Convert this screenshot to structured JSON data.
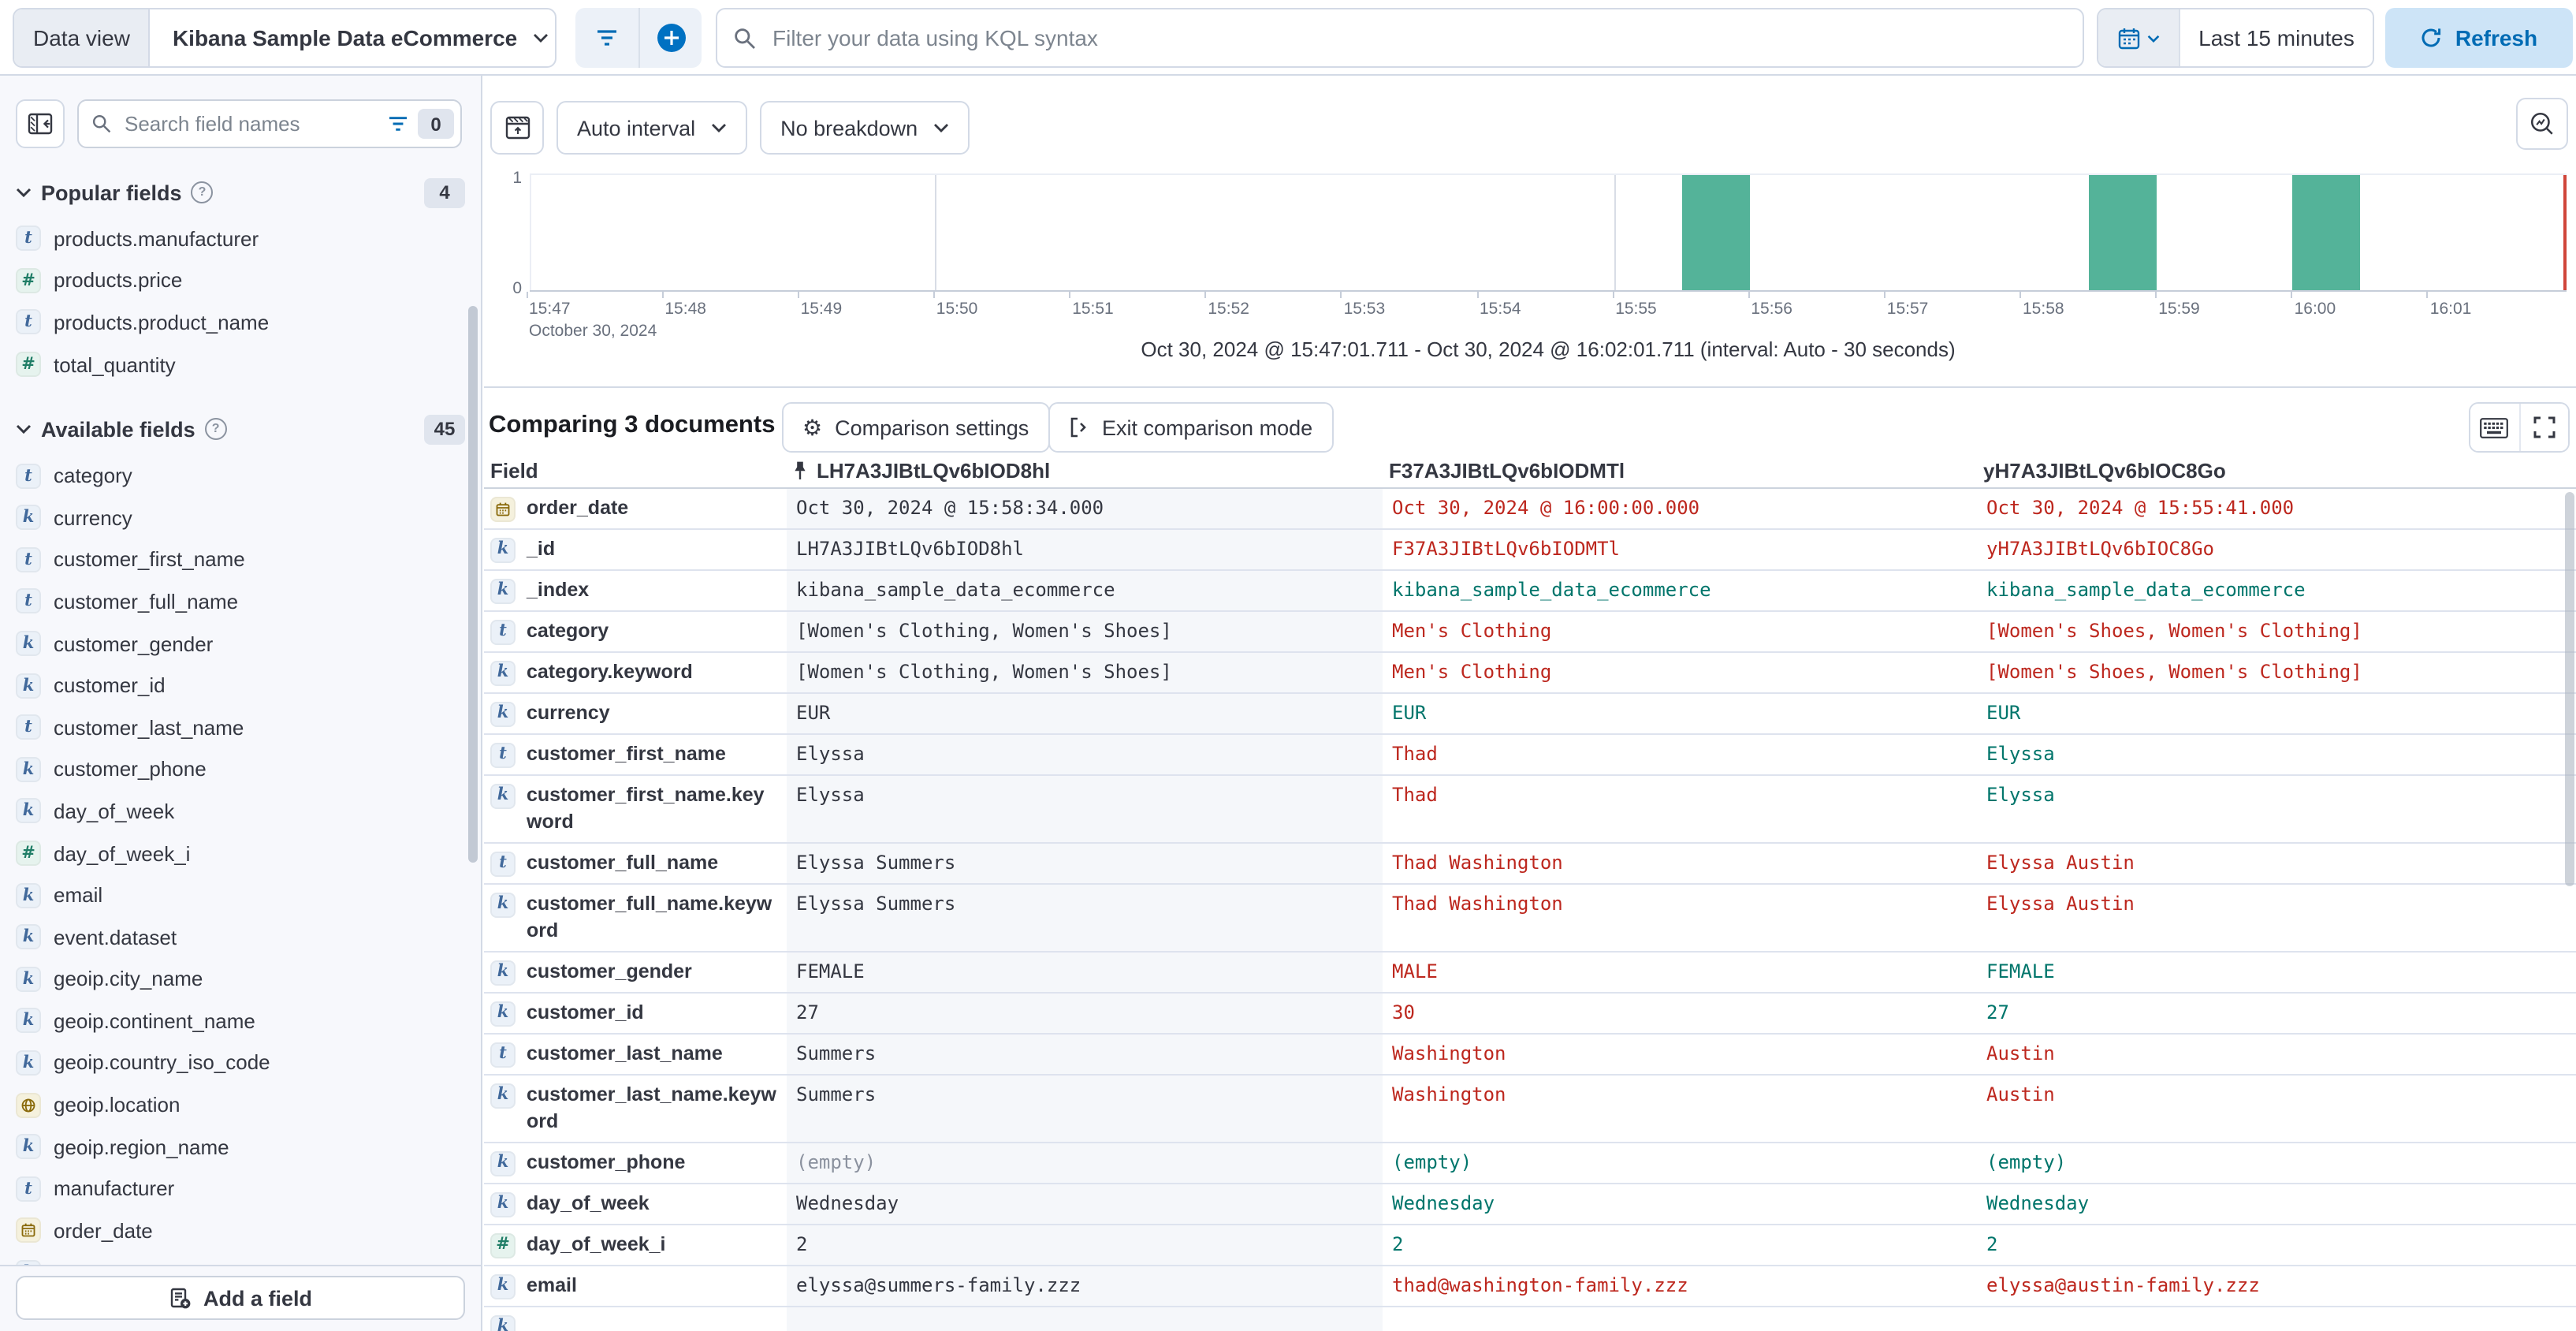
{
  "top_bar": {
    "data_view_label": "Data view",
    "data_view_value": "Kibana Sample Data eCommerce",
    "kql_placeholder": "Filter your data using KQL syntax",
    "time_range": "Last 15 minutes",
    "refresh_label": "Refresh"
  },
  "sidebar": {
    "search_placeholder": "Search field names",
    "filter_count": "0",
    "popular": {
      "label": "Popular fields",
      "count": "4",
      "items": [
        {
          "type": "t",
          "name": "products.manufacturer"
        },
        {
          "type": "#",
          "name": "products.price"
        },
        {
          "type": "t",
          "name": "products.product_name"
        },
        {
          "type": "#",
          "name": "total_quantity"
        }
      ]
    },
    "available": {
      "label": "Available fields",
      "count": "45",
      "items": [
        {
          "type": "t",
          "name": "category"
        },
        {
          "type": "k",
          "name": "currency"
        },
        {
          "type": "t",
          "name": "customer_first_name"
        },
        {
          "type": "t",
          "name": "customer_full_name"
        },
        {
          "type": "k",
          "name": "customer_gender"
        },
        {
          "type": "k",
          "name": "customer_id"
        },
        {
          "type": "t",
          "name": "customer_last_name"
        },
        {
          "type": "k",
          "name": "customer_phone"
        },
        {
          "type": "k",
          "name": "day_of_week"
        },
        {
          "type": "#",
          "name": "day_of_week_i"
        },
        {
          "type": "k",
          "name": "email"
        },
        {
          "type": "k",
          "name": "event.dataset"
        },
        {
          "type": "k",
          "name": "geoip.city_name"
        },
        {
          "type": "k",
          "name": "geoip.continent_name"
        },
        {
          "type": "k",
          "name": "geoip.country_iso_code"
        },
        {
          "type": "geo",
          "name": "geoip.location"
        },
        {
          "type": "k",
          "name": "geoip.region_name"
        },
        {
          "type": "t",
          "name": "manufacturer"
        },
        {
          "type": "date",
          "name": "order_date"
        }
      ],
      "partial_item_type": "k"
    },
    "add_field_label": "Add a field"
  },
  "chart": {
    "interval_label": "Auto interval",
    "breakdown_label": "No breakdown",
    "footer": "Oct 30, 2024 @ 15:47:01.711 - Oct 30, 2024 @ 16:02:01.711 (interval: Auto - 30 seconds)"
  },
  "chart_data": {
    "type": "bar",
    "x_range": [
      "15:47:01.711",
      "16:02:01.711"
    ],
    "x": [
      "15:55:30",
      "15:58:30",
      "16:00:00"
    ],
    "values": [
      1,
      1,
      1
    ],
    "interval_seconds": 30,
    "x_ticks": [
      "15:47",
      "15:48",
      "15:49",
      "15:50",
      "15:51",
      "15:52",
      "15:53",
      "15:54",
      "15:55",
      "15:56",
      "15:57",
      "15:58",
      "15:59",
      "16:00",
      "16:01"
    ],
    "x_gridlines": [
      "15:50",
      "15:55",
      "16:00"
    ],
    "x_date_label": "October 30, 2024",
    "y_ticks": [
      "1",
      "0"
    ],
    "ylim": [
      0,
      1
    ],
    "bar_color": "#54B399",
    "end_marker_color": "#D0453A",
    "legend": "off",
    "title": ""
  },
  "compare": {
    "title": "Comparing 3 documents",
    "settings_label": "Comparison settings",
    "exit_label": "Exit comparison mode",
    "columns": [
      "Field",
      "LH7A3JIBtLQv6bIOD8hl",
      "F37A3JIBtLQv6bIODMTl",
      "yH7A3JIBtLQv6bIOC8Go"
    ],
    "rows": [
      {
        "type": "date",
        "field": "order_date",
        "base": "Oct 30, 2024 @ 15:58:34.000",
        "a": "Oct 30, 2024 @ 16:00:00.000",
        "a_state": "diff",
        "b": "Oct 30, 2024 @ 15:55:41.000",
        "b_state": "diff"
      },
      {
        "type": "k",
        "field": "_id",
        "base": "LH7A3JIBtLQv6bIOD8hl",
        "a": "F37A3JIBtLQv6bIODMTl",
        "a_state": "diff",
        "b": "yH7A3JIBtLQv6bIOC8Go",
        "b_state": "diff"
      },
      {
        "type": "k",
        "field": "_index",
        "base": "kibana_sample_data_ecommerce",
        "a": "kibana_sample_data_ecommerce",
        "a_state": "same",
        "b": "kibana_sample_data_ecommerce",
        "b_state": "same"
      },
      {
        "type": "t",
        "field": "category",
        "base": "[Women's Clothing, Women's Shoes]",
        "a": "Men's Clothing",
        "a_state": "diff",
        "b": "[Women's Shoes, Women's Clothing]",
        "b_state": "diff"
      },
      {
        "type": "k",
        "field": "category.keyword",
        "base": "[Women's Clothing, Women's Shoes]",
        "a": "Men's Clothing",
        "a_state": "diff",
        "b": "[Women's Shoes, Women's Clothing]",
        "b_state": "diff"
      },
      {
        "type": "k",
        "field": "currency",
        "base": "EUR",
        "a": "EUR",
        "a_state": "same",
        "b": "EUR",
        "b_state": "same"
      },
      {
        "type": "t",
        "field": "customer_first_name",
        "base": "Elyssa",
        "a": "Thad",
        "a_state": "diff",
        "b": "Elyssa",
        "b_state": "same"
      },
      {
        "type": "k",
        "field": "customer_first_name.keyword",
        "base": "Elyssa",
        "a": "Thad",
        "a_state": "diff",
        "b": "Elyssa",
        "b_state": "same"
      },
      {
        "type": "t",
        "field": "customer_full_name",
        "base": "Elyssa Summers",
        "a": "Thad Washington",
        "a_state": "diff",
        "b": "Elyssa Austin",
        "b_state": "diff"
      },
      {
        "type": "k",
        "field": "customer_full_name.keyword",
        "base": "Elyssa Summers",
        "a": "Thad Washington",
        "a_state": "diff",
        "b": "Elyssa Austin",
        "b_state": "diff"
      },
      {
        "type": "k",
        "field": "customer_gender",
        "base": "FEMALE",
        "a": "MALE",
        "a_state": "diff",
        "b": "FEMALE",
        "b_state": "same"
      },
      {
        "type": "k",
        "field": "customer_id",
        "base": "27",
        "a": "30",
        "a_state": "diff",
        "b": "27",
        "b_state": "same"
      },
      {
        "type": "t",
        "field": "customer_last_name",
        "base": "Summers",
        "a": "Washington",
        "a_state": "diff",
        "b": "Austin",
        "b_state": "diff"
      },
      {
        "type": "k",
        "field": "customer_last_name.keyword",
        "base": "Summers",
        "a": "Washington",
        "a_state": "diff",
        "b": "Austin",
        "b_state": "diff"
      },
      {
        "type": "k",
        "field": "customer_phone",
        "base": "(empty)",
        "base_muted": true,
        "a": "(empty)",
        "a_state": "same",
        "b": "(empty)",
        "b_state": "same"
      },
      {
        "type": "k",
        "field": "day_of_week",
        "base": "Wednesday",
        "a": "Wednesday",
        "a_state": "same",
        "b": "Wednesday",
        "b_state": "same"
      },
      {
        "type": "#",
        "field": "day_of_week_i",
        "base": "2",
        "a": "2",
        "a_state": "same",
        "b": "2",
        "b_state": "same"
      },
      {
        "type": "k",
        "field": "email",
        "base": "elyssa@summers-family.zzz",
        "a": "thad@washington-family.zzz",
        "a_state": "diff",
        "b": "elyssa@austin-family.zzz",
        "b_state": "diff"
      }
    ],
    "partial_row_type": "k"
  },
  "colors": {
    "primary_blue": "#0071C2",
    "icon_blue": "#006BB4",
    "diff_red": "#BD271E",
    "match_green": "#00756B",
    "bar_green": "#54B399",
    "pinned_column_bg": "#F5F7FA"
  }
}
